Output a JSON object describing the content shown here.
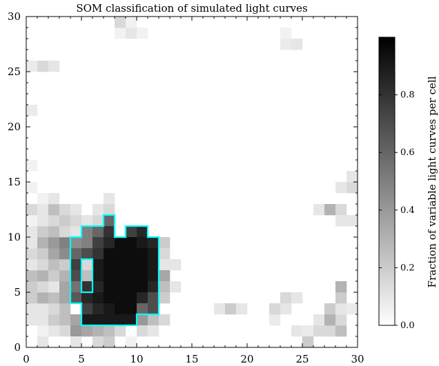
{
  "chart_data": {
    "type": "heatmap",
    "title": "SOM classification of simulated light curves",
    "xlabel": "",
    "ylabel": "",
    "xlim": [
      0,
      30
    ],
    "ylim": [
      0,
      30
    ],
    "xticks": [
      0,
      5,
      10,
      15,
      20,
      25,
      30
    ],
    "yticks": [
      0,
      5,
      10,
      15,
      20,
      25,
      30
    ],
    "colormap": "greys",
    "colorbar": {
      "label": "Fraction of variable light curves per cell",
      "range": [
        0,
        1
      ],
      "ticks": [
        0.0,
        0.2,
        0.4,
        0.6,
        0.8
      ],
      "tick_labels": [
        "0.0",
        "0.2",
        "0.4",
        "0.6",
        "0.8"
      ]
    },
    "outline_color": "#00ffff",
    "highlight_region_cells": [
      [
        7,
        11
      ],
      [
        5,
        10
      ],
      [
        6,
        10
      ],
      [
        7,
        10
      ],
      [
        9,
        10
      ],
      [
        10,
        10
      ],
      [
        4,
        9
      ],
      [
        5,
        9
      ],
      [
        6,
        9
      ],
      [
        7,
        9
      ],
      [
        8,
        9
      ],
      [
        9,
        9
      ],
      [
        10,
        9
      ],
      [
        11,
        9
      ],
      [
        4,
        8
      ],
      [
        5,
        8
      ],
      [
        6,
        8
      ],
      [
        7,
        8
      ],
      [
        8,
        8
      ],
      [
        9,
        8
      ],
      [
        10,
        8
      ],
      [
        11,
        8
      ],
      [
        4,
        7
      ],
      [
        6,
        7
      ],
      [
        7,
        7
      ],
      [
        8,
        7
      ],
      [
        9,
        7
      ],
      [
        10,
        7
      ],
      [
        11,
        7
      ],
      [
        4,
        6
      ],
      [
        6,
        6
      ],
      [
        7,
        6
      ],
      [
        8,
        6
      ],
      [
        9,
        6
      ],
      [
        10,
        6
      ],
      [
        11,
        6
      ],
      [
        4,
        5
      ],
      [
        6,
        5
      ],
      [
        7,
        5
      ],
      [
        8,
        5
      ],
      [
        9,
        5
      ],
      [
        10,
        5
      ],
      [
        11,
        5
      ],
      [
        4,
        4
      ],
      [
        5,
        4
      ],
      [
        6,
        4
      ],
      [
        7,
        4
      ],
      [
        8,
        4
      ],
      [
        9,
        4
      ],
      [
        10,
        4
      ],
      [
        11,
        4
      ],
      [
        5,
        3
      ],
      [
        6,
        3
      ],
      [
        7,
        3
      ],
      [
        8,
        3
      ],
      [
        9,
        3
      ],
      [
        10,
        3
      ],
      [
        11,
        3
      ],
      [
        5,
        2
      ],
      [
        6,
        2
      ],
      [
        7,
        2
      ],
      [
        8,
        2
      ],
      [
        9,
        2
      ]
    ],
    "cells": [
      [
        7,
        11,
        0.6
      ],
      [
        5,
        10,
        0.5
      ],
      [
        6,
        10,
        0.6
      ],
      [
        7,
        10,
        0.8
      ],
      [
        9,
        10,
        0.75
      ],
      [
        10,
        10,
        0.85
      ],
      [
        4,
        9,
        0.45
      ],
      [
        5,
        9,
        0.5
      ],
      [
        6,
        9,
        0.75
      ],
      [
        7,
        9,
        0.85
      ],
      [
        8,
        9,
        0.95
      ],
      [
        9,
        9,
        0.95
      ],
      [
        10,
        9,
        0.9
      ],
      [
        11,
        9,
        0.85
      ],
      [
        4,
        8,
        0.6
      ],
      [
        5,
        8,
        0.7
      ],
      [
        6,
        8,
        0.8
      ],
      [
        7,
        8,
        0.95
      ],
      [
        8,
        8,
        0.95
      ],
      [
        9,
        8,
        0.95
      ],
      [
        10,
        8,
        0.95
      ],
      [
        11,
        8,
        0.9
      ],
      [
        4,
        7,
        0.75
      ],
      [
        5,
        7,
        0.15
      ],
      [
        6,
        7,
        0.9
      ],
      [
        7,
        7,
        0.95
      ],
      [
        8,
        7,
        0.95
      ],
      [
        9,
        7,
        0.95
      ],
      [
        10,
        7,
        0.95
      ],
      [
        11,
        7,
        0.9
      ],
      [
        4,
        6,
        0.7
      ],
      [
        5,
        6,
        0.25
      ],
      [
        6,
        6,
        0.9
      ],
      [
        7,
        6,
        0.95
      ],
      [
        8,
        6,
        0.95
      ],
      [
        9,
        6,
        0.95
      ],
      [
        10,
        6,
        0.95
      ],
      [
        11,
        6,
        0.9
      ],
      [
        4,
        5,
        0.55
      ],
      [
        5,
        5,
        0.8
      ],
      [
        6,
        5,
        0.85
      ],
      [
        7,
        5,
        0.95
      ],
      [
        8,
        5,
        0.95
      ],
      [
        9,
        5,
        0.95
      ],
      [
        10,
        5,
        0.95
      ],
      [
        11,
        5,
        0.85
      ],
      [
        4,
        4,
        0.65
      ],
      [
        5,
        4,
        0.85
      ],
      [
        6,
        4,
        0.9
      ],
      [
        7,
        4,
        0.95
      ],
      [
        8,
        4,
        0.95
      ],
      [
        9,
        4,
        0.95
      ],
      [
        10,
        4,
        0.85
      ],
      [
        11,
        4,
        0.7
      ],
      [
        5,
        3,
        0.75
      ],
      [
        6,
        3,
        0.85
      ],
      [
        7,
        3,
        0.9
      ],
      [
        8,
        3,
        0.95
      ],
      [
        9,
        3,
        0.95
      ],
      [
        10,
        3,
        0.6
      ],
      [
        11,
        3,
        0.7
      ],
      [
        5,
        2,
        0.9
      ],
      [
        6,
        2,
        0.9
      ],
      [
        7,
        2,
        0.9
      ],
      [
        8,
        2,
        0.9
      ],
      [
        9,
        2,
        0.9
      ],
      [
        3,
        2,
        0.25
      ],
      [
        4,
        2,
        0.35
      ],
      [
        10,
        2,
        0.4
      ],
      [
        11,
        2,
        0.25
      ],
      [
        12,
        2,
        0.15
      ],
      [
        3,
        1,
        0.15
      ],
      [
        4,
        1,
        0.4
      ],
      [
        5,
        1,
        0.35
      ],
      [
        6,
        1,
        0.3
      ],
      [
        7,
        1,
        0.25
      ],
      [
        8,
        1,
        0.15
      ],
      [
        10,
        1,
        0.15
      ],
      [
        11,
        1,
        0.1
      ],
      [
        4,
        0,
        0.1
      ],
      [
        6,
        0,
        0.15
      ],
      [
        7,
        0,
        0.2
      ],
      [
        9,
        0,
        0.05
      ],
      [
        1,
        0,
        0.1
      ],
      [
        2,
        1,
        0.1
      ],
      [
        1,
        1,
        0.05
      ],
      [
        0,
        2,
        0.1
      ],
      [
        1,
        2,
        0.1
      ],
      [
        2,
        2,
        0.2
      ],
      [
        3,
        3,
        0.25
      ],
      [
        2,
        3,
        0.15
      ],
      [
        1,
        3,
        0.1
      ],
      [
        0,
        3,
        0.1
      ],
      [
        0,
        4,
        0.2
      ],
      [
        1,
        4,
        0.3
      ],
      [
        2,
        4,
        0.25
      ],
      [
        3,
        4,
        0.35
      ],
      [
        0,
        5,
        0.2
      ],
      [
        1,
        5,
        0.15
      ],
      [
        2,
        5,
        0.1
      ],
      [
        3,
        5,
        0.35
      ],
      [
        0,
        6,
        0.25
      ],
      [
        1,
        6,
        0.3
      ],
      [
        2,
        6,
        0.2
      ],
      [
        3,
        6,
        0.3
      ],
      [
        0,
        7,
        0.1
      ],
      [
        1,
        7,
        0.15
      ],
      [
        2,
        7,
        0.25
      ],
      [
        3,
        7,
        0.2
      ],
      [
        0,
        8,
        0.15
      ],
      [
        1,
        8,
        0.2
      ],
      [
        2,
        8,
        0.35
      ],
      [
        3,
        8,
        0.45
      ],
      [
        0,
        9,
        0.1
      ],
      [
        1,
        9,
        0.3
      ],
      [
        2,
        9,
        0.4
      ],
      [
        3,
        9,
        0.5
      ],
      [
        0,
        10,
        0.1
      ],
      [
        1,
        10,
        0.2
      ],
      [
        2,
        10,
        0.25
      ],
      [
        3,
        10,
        0.15
      ],
      [
        4,
        10,
        0.1
      ],
      [
        0,
        11,
        0.05
      ],
      [
        1,
        11,
        0.1
      ],
      [
        2,
        11,
        0.15
      ],
      [
        3,
        11,
        0.2
      ],
      [
        4,
        11,
        0.15
      ],
      [
        5,
        11,
        0.1
      ],
      [
        6,
        11,
        0.15
      ],
      [
        0,
        12,
        0.15
      ],
      [
        1,
        12,
        0.1
      ],
      [
        2,
        12,
        0.25
      ],
      [
        3,
        12,
        0.15
      ],
      [
        4,
        12,
        0.1
      ],
      [
        6,
        12,
        0.1
      ],
      [
        7,
        12,
        0.15
      ],
      [
        1,
        13,
        0.05
      ],
      [
        2,
        13,
        0.1
      ],
      [
        7,
        13,
        0.1
      ],
      [
        12,
        9,
        0.2
      ],
      [
        12,
        8,
        0.15
      ],
      [
        12,
        7,
        0.1
      ],
      [
        12,
        6,
        0.35
      ],
      [
        12,
        5,
        0.25
      ],
      [
        12,
        4,
        0.2
      ],
      [
        13,
        7,
        0.1
      ],
      [
        13,
        5,
        0.1
      ],
      [
        0,
        14,
        0.05
      ],
      [
        0,
        16,
        0.05
      ],
      [
        0,
        21,
        0.08
      ],
      [
        0,
        25,
        0.08
      ],
      [
        1,
        25,
        0.15
      ],
      [
        2,
        25,
        0.1
      ],
      [
        8,
        28,
        0.05
      ],
      [
        9,
        28,
        0.1
      ],
      [
        10,
        28,
        0.05
      ],
      [
        8,
        29,
        0.15
      ],
      [
        9,
        29,
        0.05
      ],
      [
        23,
        27,
        0.08
      ],
      [
        23,
        28,
        0.05
      ],
      [
        24,
        27,
        0.1
      ],
      [
        17,
        3,
        0.1
      ],
      [
        18,
        3,
        0.2
      ],
      [
        19,
        3,
        0.1
      ],
      [
        22,
        2,
        0.08
      ],
      [
        22,
        3,
        0.15
      ],
      [
        23,
        3,
        0.1
      ],
      [
        23,
        4,
        0.15
      ],
      [
        24,
        4,
        0.1
      ],
      [
        24,
        1,
        0.1
      ],
      [
        25,
        1,
        0.08
      ],
      [
        25,
        0,
        0.2
      ],
      [
        26,
        1,
        0.15
      ],
      [
        26,
        2,
        0.1
      ],
      [
        27,
        1,
        0.15
      ],
      [
        27,
        2,
        0.3
      ],
      [
        27,
        3,
        0.2
      ],
      [
        28,
        1,
        0.25
      ],
      [
        28,
        2,
        0.15
      ],
      [
        28,
        3,
        0.1
      ],
      [
        28,
        4,
        0.2
      ],
      [
        28,
        5,
        0.3
      ],
      [
        29,
        3,
        0.08
      ],
      [
        26,
        12,
        0.1
      ],
      [
        27,
        12,
        0.3
      ],
      [
        28,
        12,
        0.15
      ],
      [
        28,
        11,
        0.1
      ],
      [
        29,
        11,
        0.1
      ],
      [
        28,
        14,
        0.1
      ],
      [
        29,
        14,
        0.15
      ],
      [
        29,
        15,
        0.1
      ]
    ]
  }
}
